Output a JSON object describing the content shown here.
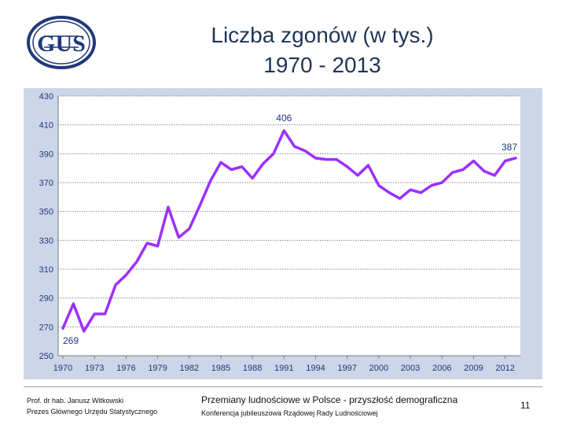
{
  "logo": {
    "text": "GUS"
  },
  "title": {
    "line1": "Liczba zgonów (w tys.)",
    "line2": "1970 - 2013"
  },
  "chart_data": {
    "type": "line",
    "title": "Liczba zgonów (w tys.)",
    "subtitle": "1970 - 2013",
    "xlabel": "",
    "ylabel": "",
    "ylim": [
      250,
      430
    ],
    "yticks": [
      250,
      270,
      290,
      310,
      330,
      350,
      370,
      390,
      410,
      430
    ],
    "xticks": [
      1970,
      1973,
      1976,
      1979,
      1982,
      1985,
      1988,
      1991,
      1994,
      1997,
      2000,
      2003,
      2006,
      2009,
      2012
    ],
    "grid": true,
    "legend": "none",
    "line_color": "#9b30ff",
    "x": [
      1970,
      1971,
      1972,
      1973,
      1974,
      1975,
      1976,
      1977,
      1978,
      1979,
      1980,
      1981,
      1982,
      1983,
      1984,
      1985,
      1986,
      1987,
      1988,
      1989,
      1990,
      1991,
      1992,
      1993,
      1994,
      1995,
      1996,
      1997,
      1998,
      1999,
      2000,
      2001,
      2002,
      2003,
      2004,
      2005,
      2006,
      2007,
      2008,
      2009,
      2010,
      2011,
      2012,
      2013
    ],
    "series": [
      {
        "values": [
          269,
          286,
          267,
          279,
          279,
          299,
          306,
          315,
          328,
          326,
          353,
          332,
          338,
          354,
          371,
          384,
          379,
          381,
          373,
          383,
          390,
          406,
          395,
          392,
          387,
          386,
          386,
          381,
          375,
          382,
          368,
          363,
          359,
          365,
          363,
          368,
          370,
          377,
          379,
          385,
          378,
          375,
          385,
          387
        ]
      }
    ],
    "annotations": [
      {
        "x": 1970,
        "y": 269,
        "label": "269"
      },
      {
        "x": 1991,
        "y": 406,
        "label": "406"
      },
      {
        "x": 2013,
        "y": 387,
        "label": "387"
      }
    ]
  },
  "footer": {
    "author_line1": "Prof. dr hab. Janusz Witkowski",
    "author_line2": "Prezes Głównego Urzędu Statystycznego",
    "conf_line1": "Przemiany ludnościowe w Polsce - przyszłość demograficzna",
    "conf_line2": "Konferencja jubileuszowa Rządowej Rady Ludnościowej",
    "page_number": "11"
  }
}
